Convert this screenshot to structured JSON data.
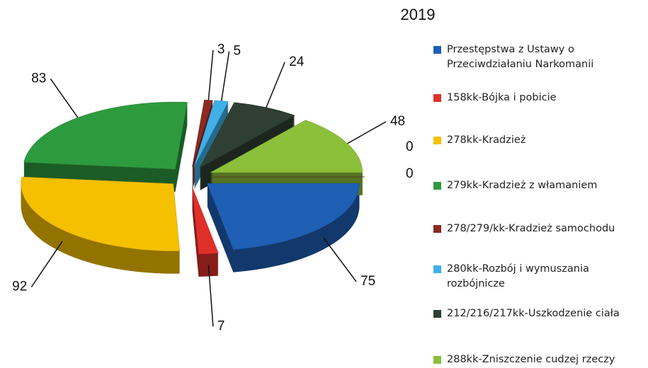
{
  "chart_data": {
    "type": "pie3d",
    "title": "2019",
    "categories": [
      "Przestępstwa z Ustawy o Przeciwdziałaniu Narkomanii",
      "158kk-Bójka i pobicie",
      "278kk-Kradzież",
      "279kk-Kradzież z włamaniem",
      "278/279/kk-Kradzież samochodu",
      "280kk-Rozbój i wymuszania rozbójnicze",
      "212/216/217kk-Uszkodzenie ciała",
      "288kk-Zniszczenie cudzej rzeczy",
      null,
      null
    ],
    "values": [
      75,
      7,
      92,
      83,
      3,
      5,
      24,
      48,
      0,
      0
    ],
    "colors": [
      "#1f5fb4",
      "#e0302a",
      "#f5c000",
      "#2e9a3e",
      "#8b2a22",
      "#3fb0e8",
      "#2f3f33",
      "#8cbf3a",
      "#8b4a2a",
      "#6b4a30"
    ]
  }
}
